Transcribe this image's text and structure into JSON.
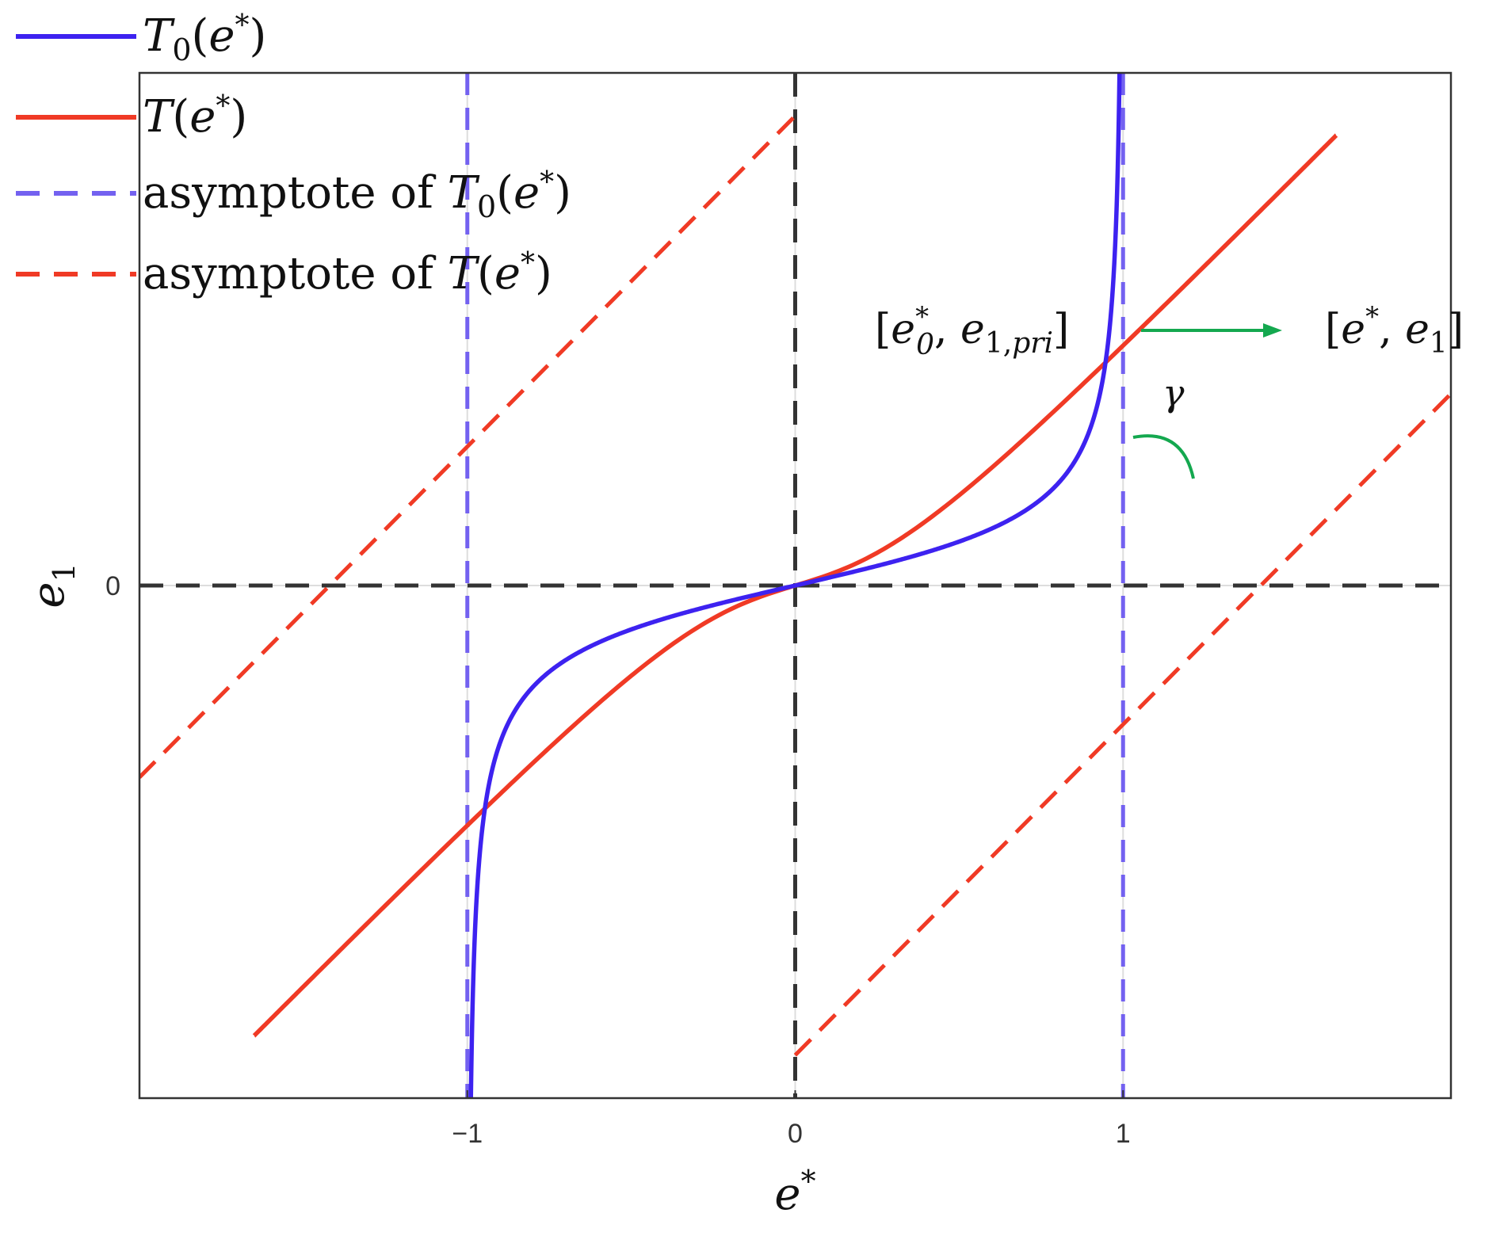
{
  "chart_data": {
    "type": "line",
    "xlabel": "e*",
    "ylabel": "e1",
    "xlim": [
      -2,
      2
    ],
    "ylim": [
      -1.55,
      1.55
    ],
    "x_ticks": [
      {
        "value": -1,
        "label": "−1"
      },
      {
        "value": 0,
        "label": "0"
      },
      {
        "value": 1,
        "label": "1"
      }
    ],
    "y_ticks": [
      {
        "value": 0,
        "label": "0"
      }
    ],
    "grid": true,
    "legend_position": "top-left outside axes",
    "series": [
      {
        "name": "T0(e*)",
        "label_main": "T",
        "label_sub": "0",
        "label_rest": "(e*)",
        "color": "#3d22f0",
        "style": "solid",
        "function": "e1 = a*e/sqrt(1-e^2)",
        "params": {
          "a": 0.23
        },
        "x_range": [
          -0.99,
          0.99
        ]
      },
      {
        "name": "T(e*)",
        "label_main": "T",
        "label_sub": "",
        "label_rest": "(e*)",
        "color": "#f03a25",
        "style": "solid",
        "function": "e1 = e - (1-c)*e/sqrt(1+k*e^2)",
        "params": {
          "c": 0.3,
          "k": 5.5
        },
        "x_range": [
          -1.65,
          1.65
        ]
      },
      {
        "name": "asymptote of T0(e*)",
        "label_main": "asymptote of T",
        "label_sub": "0",
        "label_rest": "(e*)",
        "color": "#7361f0",
        "style": "dashed",
        "x_values": [
          -1,
          1
        ]
      },
      {
        "name": "asymptote of T(e*)",
        "label_main": "asymptote of T",
        "label_sub": "",
        "label_rest": "(e*)",
        "color": "#f03a25",
        "style": "dashed",
        "lines": [
          {
            "slope": 1,
            "intercept": 1.42,
            "x_range": [
              -2,
              0
            ]
          },
          {
            "slope": 1,
            "intercept": -1.42,
            "x_range": [
              0,
              2
            ]
          }
        ]
      }
    ],
    "reference_lines": {
      "x0": 0,
      "y0": 0,
      "color": "#333333",
      "style": "dashed"
    },
    "annotations": {
      "left_point": {
        "text": "[e0*, e1,pri]",
        "x": 1,
        "y": 0.98
      },
      "right_point": {
        "text": "[e*, e1]",
        "x": 1.57,
        "y": 0.79
      },
      "angle_label": "γ",
      "arrow_color": "#14a84f"
    }
  }
}
